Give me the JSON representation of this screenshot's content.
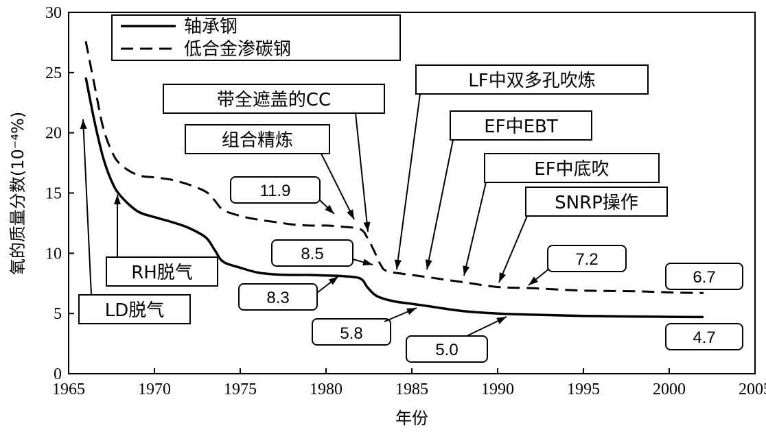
{
  "chart_data": {
    "type": "line",
    "xlabel": "年份",
    "ylabel": "氧的质量分数(10⁻⁴%)",
    "xlim": [
      1965,
      2005
    ],
    "ylim": [
      0,
      30
    ],
    "grid": false,
    "legend_position": "top-left",
    "x_ticks": [
      "1965",
      "1970",
      "1975",
      "1980",
      "1985",
      "1990",
      "1995",
      "2000",
      "2005"
    ],
    "y_ticks": [
      "0",
      "5",
      "10",
      "15",
      "20",
      "25",
      "30"
    ],
    "series": [
      {
        "name": "轴承钢",
        "style": "solid",
        "x": [
          1966,
          1966.5,
          1967,
          1967.5,
          1968,
          1969,
          1970,
          1971,
          1972,
          1973,
          1973.5,
          1974,
          1975,
          1976,
          1977,
          1978,
          1979,
          1980,
          1981,
          1982,
          1982.4,
          1982.8,
          1983.2,
          1984,
          1985,
          1986,
          1988,
          1990,
          1992,
          1995,
          1998,
          2000,
          2002
        ],
        "y": [
          24.6,
          21,
          18,
          16,
          14.8,
          13.5,
          13,
          12.6,
          12.1,
          11.3,
          10.3,
          9.3,
          8.8,
          8.4,
          8.25,
          8.2,
          8.2,
          8.15,
          8.1,
          7.9,
          7.2,
          6.6,
          6.3,
          6.0,
          5.8,
          5.6,
          5.2,
          5.0,
          4.9,
          4.8,
          4.75,
          4.72,
          4.7
        ]
      },
      {
        "name": "低合金渗碳钢",
        "style": "dashed",
        "x": [
          1966,
          1966.5,
          1967,
          1967.5,
          1968,
          1969,
          1970,
          1971,
          1972,
          1973,
          1973.5,
          1974,
          1975,
          1976,
          1977,
          1978,
          1979,
          1980,
          1981,
          1982,
          1982.4,
          1982.8,
          1983.2,
          1983.6,
          1985,
          1986,
          1988,
          1990,
          1992,
          1995,
          1998,
          2000,
          2002
        ],
        "y": [
          27.6,
          24,
          20.5,
          18.5,
          17.4,
          16.5,
          16.3,
          16.1,
          15.7,
          15.1,
          14.4,
          13.6,
          13.1,
          12.8,
          12.6,
          12.4,
          12.3,
          12.3,
          12.2,
          12.0,
          11.3,
          10.2,
          9.0,
          8.5,
          8.2,
          8.0,
          7.6,
          7.2,
          7.1,
          6.9,
          6.85,
          6.75,
          6.7
        ]
      }
    ],
    "annotations": [
      "LD脱气",
      "RH脱气",
      "组合精炼",
      "带全遮盖的CC",
      "LF中双多孔吹炼",
      "EF中EBT",
      "EF中底吹",
      "SNRP操作"
    ],
    "value_labels": [
      "11.9",
      "8.5",
      "8.3",
      "5.8",
      "5.0",
      "7.2",
      "6.7",
      "4.7"
    ]
  }
}
